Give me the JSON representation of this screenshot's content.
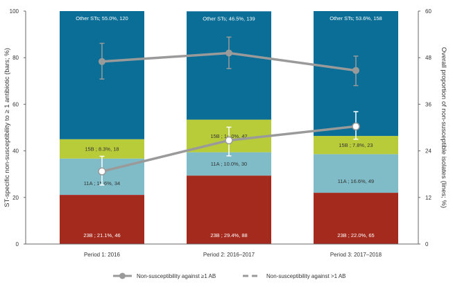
{
  "chart_data": {
    "type": "bar",
    "stacked": true,
    "categories": [
      "Period 1: 2016",
      "Period 2: 2016–2017",
      "Period 3: 2017–2018"
    ],
    "ylabel": "ST-specific non-susceptibility to ≥ 1 antibiotic (bars; %)",
    "y2label": "Overall proportion of non-susceptible isolates (lines; %)",
    "ylim": [
      0,
      100
    ],
    "y2lim": [
      0,
      60
    ],
    "yticks": [
      "0",
      "20",
      "40",
      "60",
      "80",
      "100"
    ],
    "y2ticks": [
      "0",
      "12",
      "24",
      "36",
      "48",
      "60"
    ],
    "segments": [
      {
        "color": "#a52a1e",
        "text_color": "#ffffff",
        "values": [
          21.1,
          29.4,
          22.0
        ],
        "labels": [
          "23B ; 21.1%, 46",
          "23B ; 29.4%, 88",
          "23B ; 22.0%, 65"
        ]
      },
      {
        "color": "#7fbcc7",
        "text_color": "#333333",
        "values": [
          15.6,
          10.0,
          16.6
        ],
        "labels": [
          "11A ; 15.6%, 34",
          "11A ; 10.0%, 30",
          "11A ; 16.6%, 49"
        ]
      },
      {
        "color": "#b8cc3a",
        "text_color": "#333333",
        "values": [
          8.3,
          14.0,
          7.8
        ],
        "labels": [
          "15B ; 8.3%, 18",
          "15B ; 14.0%, 42",
          "15B ; 7.8%, 23"
        ]
      },
      {
        "color": "#0a6e96",
        "text_color": "#ffffff",
        "values": [
          55.0,
          46.5,
          53.6
        ],
        "labels": [
          "Other STs; 55.0%, 120",
          "Other STs; 46.5%, 139",
          "Other STs; 53.6%, 158"
        ]
      }
    ],
    "lines": [
      {
        "name": "Non-susceptibility against ≥1 AB",
        "color": "#9a9a9a",
        "dashed": false,
        "values": [
          47.0,
          49.2,
          44.7
        ],
        "err_low": [
          42.5,
          45.2,
          40.8
        ],
        "err_high": [
          51.7,
          53.3,
          48.4
        ]
      },
      {
        "name": "Non-susceptibility against >1 AB",
        "color": "#9a9a9a",
        "dashed": true,
        "values": [
          18.7,
          26.7,
          30.3
        ],
        "err_low": [
          15.2,
          22.7,
          27.0
        ],
        "err_high": [
          22.6,
          30.1,
          34.1
        ]
      }
    ],
    "legend_position": "bottom"
  }
}
